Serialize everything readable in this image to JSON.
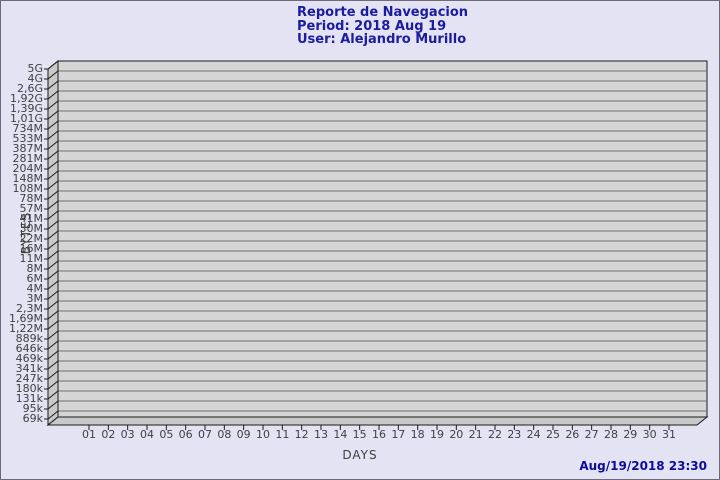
{
  "header": {
    "title": "Reporte de Navegacion",
    "period": "Period: 2018 Aug 19",
    "user": "User: Alejandro Murillo"
  },
  "footer": {
    "timestamp": "Aug/19/2018 23:30"
  },
  "chart_data": {
    "type": "bar",
    "title": "Reporte de Navegacion",
    "subtitle_lines": [
      "Period: 2018 Aug 19",
      "User: Alejandro Murillo"
    ],
    "xlabel": "DAYS",
    "ylabel": "BYTES",
    "categories": [
      "01",
      "02",
      "03",
      "04",
      "05",
      "06",
      "07",
      "08",
      "09",
      "10",
      "11",
      "12",
      "13",
      "14",
      "15",
      "16",
      "17",
      "18",
      "19",
      "20",
      "21",
      "22",
      "23",
      "24",
      "25",
      "26",
      "27",
      "28",
      "29",
      "30",
      "31"
    ],
    "y_tick_labels": [
      "5G",
      "4G",
      "2,6G",
      "1,92G",
      "1,39G",
      "1,01G",
      "734M",
      "533M",
      "387M",
      "281M",
      "204M",
      "148M",
      "108M",
      "78M",
      "57M",
      "41M",
      "30M",
      "22M",
      "16M",
      "11M",
      "8M",
      "6M",
      "4M",
      "3M",
      "2,3M",
      "1,69M",
      "1,22M",
      "889k",
      "646k",
      "469k",
      "341k",
      "247k",
      "180k",
      "131k",
      "95k",
      "69k"
    ],
    "y_scale": "power",
    "series": [],
    "grid": true,
    "legend": "none"
  },
  "colors": {
    "background": "#e3e3f4",
    "page_border": "#6b6b7b",
    "plot_fill": "#d5d5d5",
    "wall_fill": "#c9c9c9",
    "gridline": "#6e6e6e",
    "outline": "#1a1a1a",
    "tick_text": "#404040",
    "title_text": "#1c1c9e",
    "timestamp_text": "#0c0c99"
  }
}
